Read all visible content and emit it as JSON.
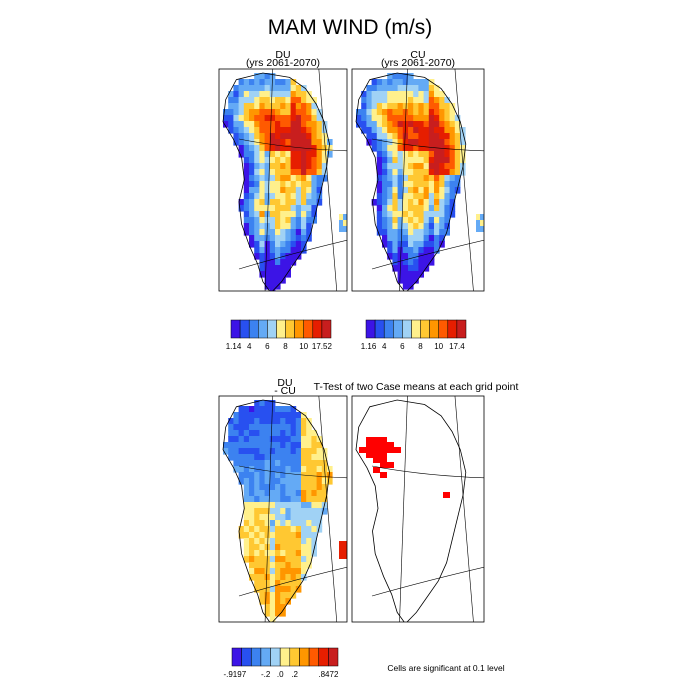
{
  "chart_data": {
    "type": "heatmap",
    "title": "MAM WIND (m/s)",
    "panels": [
      {
        "id": "du",
        "label": "DU",
        "sublabel": "(yrs 2061-2070)",
        "range": [
          1.14,
          17.52
        ]
      },
      {
        "id": "cu",
        "label": "CU",
        "sublabel": "(yrs 2061-2070)",
        "range": [
          1.16,
          17.4
        ]
      },
      {
        "id": "diff",
        "label": "DU",
        "sublabel": "- CU",
        "range": [
          -0.9197,
          0.8472
        ]
      },
      {
        "id": "ttest",
        "label": "T-Test of two Case means at each grid point",
        "note": "Cells are significant at 0.1 level",
        "significant_color": "#ff0000"
      }
    ],
    "colorbars": [
      {
        "panel": "du",
        "colors": [
          "#3c14e6",
          "#2850f0",
          "#3c82f0",
          "#64aaf5",
          "#a0d2f5",
          "#fff08c",
          "#ffc832",
          "#ff9600",
          "#ff5a00",
          "#e61e00",
          "#c81e1e"
        ],
        "ticks": [
          "1.14",
          "4",
          "6",
          "8",
          "10",
          "17.52"
        ]
      },
      {
        "panel": "cu",
        "colors": [
          "#3c14e6",
          "#2850f0",
          "#3c82f0",
          "#64aaf5",
          "#a0d2f5",
          "#fff08c",
          "#ffc832",
          "#ff9600",
          "#ff5a00",
          "#e61e00",
          "#c81e1e"
        ],
        "ticks": [
          "1.16",
          "4",
          "6",
          "8",
          "10",
          "17.4"
        ]
      },
      {
        "panel": "diff",
        "colors": [
          "#3c14e6",
          "#2850f0",
          "#3c82f0",
          "#64aaf5",
          "#a0d2f5",
          "#fff08c",
          "#ffc832",
          "#ff9600",
          "#ff5a00",
          "#e61e00",
          "#c81e1e"
        ],
        "ticks": [
          "-.9197",
          "-.2",
          ".0",
          ".2",
          ".8472"
        ]
      }
    ]
  }
}
